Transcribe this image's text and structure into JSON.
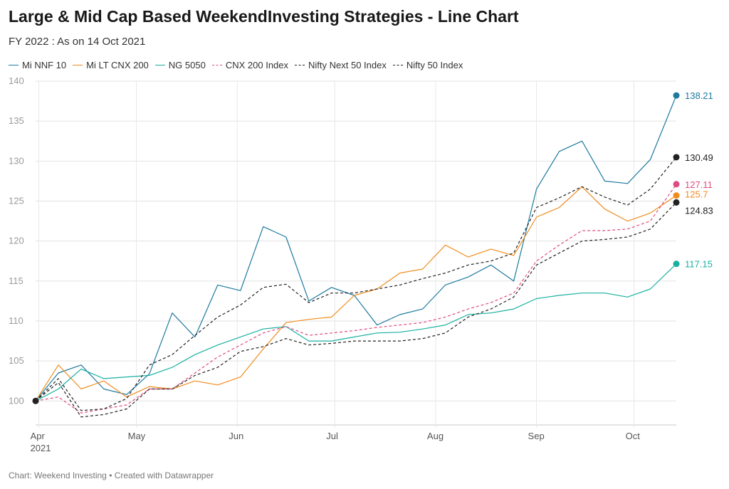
{
  "title": "Large & Mid Cap Based WeekendInvesting Strategies - Line Chart",
  "subtitle": "FY 2022 : As on 14 Oct 2021",
  "footer": "Chart: Weekend Investing • Created with Datawrapper",
  "chart_data": {
    "type": "line",
    "title": "Large & Mid Cap Based WeekendInvesting Strategies - Line Chart",
    "subtitle": "FY 2022 : As on 14 Oct 2021",
    "ylim": [
      97,
      140
    ],
    "yticks": [
      100,
      105,
      110,
      115,
      120,
      125,
      130,
      135,
      140
    ],
    "grid": "horizontal",
    "legend_position": "top",
    "xticks": [
      {
        "date": "2021-04-01",
        "label": "Apr",
        "sublabel": "2021"
      },
      {
        "date": "2021-05-01",
        "label": "May",
        "sublabel": ""
      },
      {
        "date": "2021-06-01",
        "label": "Jun",
        "sublabel": ""
      },
      {
        "date": "2021-07-01",
        "label": "Jul",
        "sublabel": ""
      },
      {
        "date": "2021-08-01",
        "label": "Aug",
        "sublabel": ""
      },
      {
        "date": "2021-09-01",
        "label": "Sep",
        "sublabel": ""
      },
      {
        "date": "2021-10-01",
        "label": "Oct",
        "sublabel": ""
      }
    ],
    "x": [
      "2021-03-31",
      "2021-04-07",
      "2021-04-14",
      "2021-04-21",
      "2021-04-28",
      "2021-05-05",
      "2021-05-12",
      "2021-05-19",
      "2021-05-26",
      "2021-06-02",
      "2021-06-09",
      "2021-06-16",
      "2021-06-23",
      "2021-06-30",
      "2021-07-07",
      "2021-07-14",
      "2021-07-21",
      "2021-07-28",
      "2021-08-04",
      "2021-08-11",
      "2021-08-18",
      "2021-08-25",
      "2021-09-01",
      "2021-09-08",
      "2021-09-15",
      "2021-09-22",
      "2021-09-29",
      "2021-10-06",
      "2021-10-14"
    ],
    "series": [
      {
        "name": "Mi NNF 10",
        "color": "#1d7a9e",
        "dash": false,
        "end_label": "138.21",
        "values": [
          100,
          103.5,
          104.5,
          101.5,
          100.8,
          103.4,
          111,
          108,
          114.5,
          113.8,
          121.8,
          120.5,
          112.5,
          114.2,
          113.2,
          109.5,
          110.8,
          111.5,
          114.5,
          115.5,
          117,
          115,
          126.5,
          131.2,
          132.5,
          127.5,
          127.2,
          130.2,
          138.21
        ]
      },
      {
        "name": "Mi LT CNX 200",
        "color": "#f08c1e",
        "dash": false,
        "end_label": "125.7",
        "values": [
          100,
          104.5,
          101.5,
          102.5,
          100.5,
          101.8,
          101.5,
          102.5,
          102,
          103,
          106.5,
          109.8,
          110.2,
          110.5,
          113.2,
          114,
          116,
          116.5,
          119.5,
          118,
          119,
          118.2,
          123,
          124.2,
          126.8,
          124,
          122.5,
          123.5,
          125.7
        ]
      },
      {
        "name": "NG 5050",
        "color": "#19b0a0",
        "dash": false,
        "end_label": "117.15",
        "values": [
          100,
          101.5,
          104,
          102.8,
          103,
          103.2,
          104.2,
          105.8,
          107,
          108,
          109,
          109.3,
          107.5,
          107.5,
          108,
          108.5,
          108.6,
          109,
          109.5,
          110.8,
          111,
          111.5,
          112.8,
          113.2,
          113.5,
          113.5,
          113,
          114,
          117.15
        ]
      },
      {
        "name": "CNX 200 Index",
        "color": "#e04a82",
        "dash": true,
        "end_label": "127.11",
        "values": [
          100,
          100.5,
          98.5,
          99,
          99.5,
          101.5,
          101.5,
          103.5,
          105.5,
          107,
          108.5,
          109.3,
          108.2,
          108.5,
          108.8,
          109.2,
          109.5,
          109.8,
          110.5,
          111.5,
          112.3,
          113.5,
          117.5,
          119.5,
          121.3,
          121.3,
          121.5,
          122.5,
          127.11
        ]
      },
      {
        "name": "Nifty Next 50 Index",
        "color": "#222222",
        "dash": true,
        "end_label": "124.83",
        "values": [
          100,
          102.3,
          98,
          98.3,
          99,
          101.5,
          101.5,
          103.2,
          104.2,
          106.2,
          106.8,
          107.8,
          107,
          107.2,
          107.5,
          107.5,
          107.5,
          107.8,
          108.5,
          110.5,
          111.5,
          113,
          117,
          118.5,
          120,
          120.2,
          120.5,
          121.5,
          124.83
        ]
      },
      {
        "name": "Nifty 50 Index",
        "color": "#222222",
        "dash": true,
        "end_label": "130.49",
        "values": [
          100,
          102.8,
          98.8,
          99,
          100.3,
          104.5,
          105.8,
          108.2,
          110.5,
          112,
          114.2,
          114.6,
          112.3,
          113.5,
          113.5,
          114,
          114.5,
          115.3,
          116,
          117,
          117.5,
          118.5,
          124.2,
          125.4,
          126.8,
          125.5,
          124.5,
          126.5,
          130.49
        ]
      }
    ]
  }
}
